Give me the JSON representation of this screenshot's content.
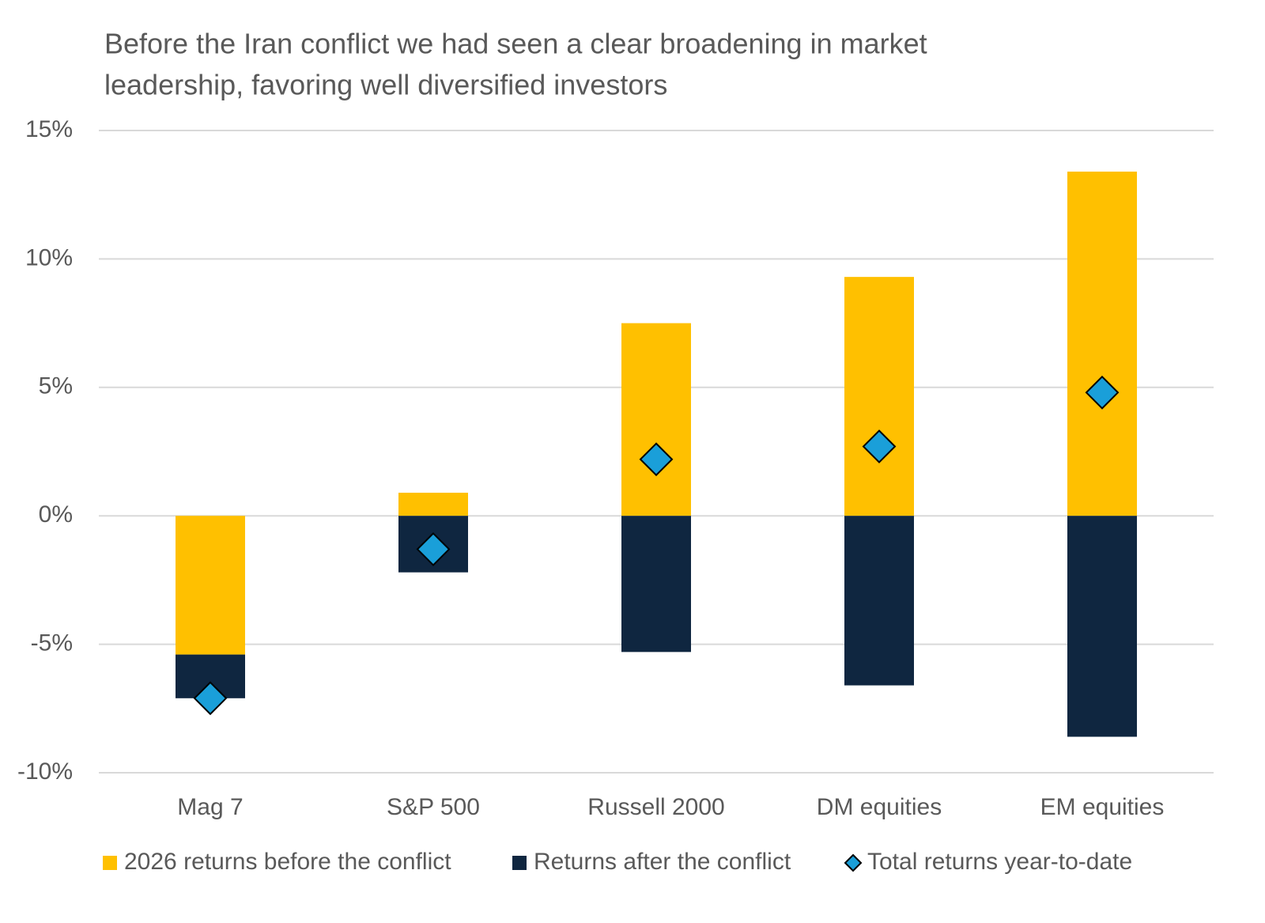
{
  "chart_data": {
    "type": "bar",
    "stacked": true,
    "title": [
      "Before the Iran conflict we had seen a clear broadening in market",
      "leadership, favoring well diversified investors"
    ],
    "categories": [
      "Mag 7",
      "S&P 500",
      "Russell 2000",
      "DM equities",
      "EM equities"
    ],
    "series": [
      {
        "name": "2026 returns before the conflict",
        "color": "#FFC000",
        "kind": "bar",
        "values": [
          -5.4,
          0.9,
          7.5,
          9.3,
          13.4
        ]
      },
      {
        "name": "Returns after the conflict",
        "color": "#0F2640",
        "kind": "bar",
        "values": [
          -1.7,
          -2.2,
          -5.3,
          -6.6,
          -8.6
        ]
      },
      {
        "name": "Total returns year-to-date",
        "color": "#1A9FD9",
        "kind": "diamond",
        "values": [
          -7.1,
          -1.3,
          2.2,
          2.7,
          4.8
        ]
      }
    ],
    "ylim": [
      -10,
      15
    ],
    "yticks": [
      {
        "value": -10,
        "label": "-10%"
      },
      {
        "value": -5,
        "label": "-5%"
      },
      {
        "value": 0,
        "label": "0%"
      },
      {
        "value": 5,
        "label": "5%"
      },
      {
        "value": 10,
        "label": "10%"
      },
      {
        "value": 15,
        "label": "15%"
      }
    ],
    "grid": true,
    "legend": "bottom"
  }
}
